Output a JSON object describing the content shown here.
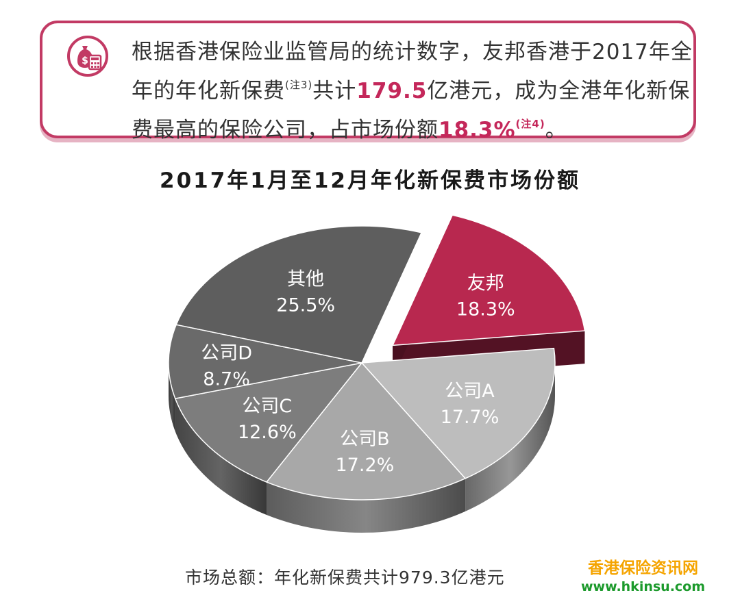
{
  "callout": {
    "icon": "money-bag-calculator-icon",
    "line1": "根据香港保险业监管局的统计数字，友邦香港于2017年全",
    "line2_a": "年的年化新保费",
    "line2_sup": "(注3)",
    "line2_b": "共计",
    "line2_value": "179.5",
    "line2_c": "亿港元，成为全港年化新保",
    "line3_a": "费最高的保险公司，占市场份额",
    "line3_value": "18.3%",
    "line3_sup": "(注4)",
    "line3_b": "。",
    "accent_color": "#c4275a"
  },
  "chart_data": {
    "type": "pie",
    "title": "2017年1月至12月年化新保费市场份额",
    "slices": [
      {
        "label": "友邦",
        "value": 18.3,
        "value_label": "18.3%",
        "color": "#b8284f",
        "exploded": true
      },
      {
        "label": "公司A",
        "value": 17.7,
        "value_label": "17.7%",
        "color": "#bdbdbd"
      },
      {
        "label": "公司B",
        "value": 17.2,
        "value_label": "17.2%",
        "color": "#a8a8a8"
      },
      {
        "label": "公司C",
        "value": 12.6,
        "value_label": "12.6%",
        "color": "#7d7d7d"
      },
      {
        "label": "公司D",
        "value": 8.7,
        "value_label": "8.7%",
        "color": "#6a6a6a"
      },
      {
        "label": "其他",
        "value": 25.5,
        "value_label": "25.5%",
        "color": "#5e5e5e"
      }
    ],
    "style": "3d"
  },
  "footer": "市场总额：年化新保费共计979.3亿港元",
  "watermark": {
    "name": "香港保险资讯网",
    "url": "www.hkinsu.com"
  }
}
